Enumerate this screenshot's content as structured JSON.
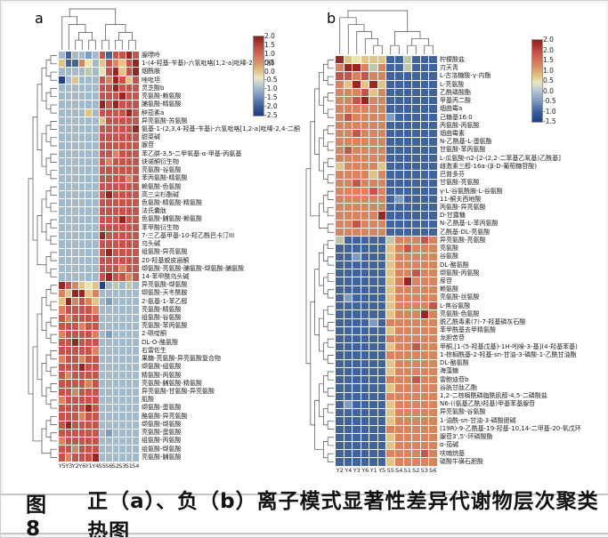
{
  "figure": {
    "caption_prefix": "图 8",
    "caption": "正（a）、负（b）离子模式显著性差异代谢物层次聚类热图"
  },
  "palette": {
    "R": "#992620",
    "r": "#c5544a",
    "o": "#d8845f",
    "t": "#e2c386",
    "y": "#e9e2b1",
    "g": "#bec7a8",
    "b": "#a2b8cb",
    "m": "#7e9cc2",
    "B": "#41639e",
    "D": "#24418e"
  },
  "chart_data": {
    "type": "heatmap",
    "title": "正（a）、负（b）离子模式显著性差异代谢物层次聚类热图",
    "legend_position": "right",
    "panels": [
      {
        "label": "a",
        "col_labels": [
          "Y5",
          "Y3",
          "Y2",
          "Y6",
          "Y1",
          "Y4",
          "S5",
          "S6",
          "S2",
          "S3",
          "S1",
          "S4"
        ],
        "colorbar_ticks": [
          "2.0",
          "1.5",
          "1.0",
          "0.5",
          "0.0",
          "-0.5",
          "-1.0",
          "-1.5",
          "-2.0",
          "-2.5"
        ],
        "colorbar_range": [
          2.0,
          -2.5
        ],
        "row_split": 28,
        "col_tree": [
          [
            0,
            [
              1,
              [
                [
                  2,
                  3
                ],
                [
                  4,
                  5
                ]
              ]
            ]
          ],
          [
            [
              6,
              7
            ],
            [
              [
                8,
                9
              ],
              [
                10,
                11
              ]
            ]
          ]
        ],
        "row_labels": [
          "腺嘌呤",
          "1-(4-羟基-苄基)-六氢吡咯[1,2-a]吡嗪-2,4-二酮",
          "烟酰胺",
          "唑吡坦",
          "灵芝酸b",
          "亮氨酸-赖氨酸",
          "脯氨酸-精氨酸",
          "醉茄素a",
          "异亮氨酸-苏氨酸",
          "氨基-1-(2,3,4-羟基-苄基)-六氢吡咯[1,2-a]吡嗪-2,4-二酮",
          "甜菜碱",
          "脲苷",
          "苯乙肼-3,5-二甲氧基-α-甲基-丙氨基",
          "炔诺酮衍生物",
          "亮氨酸-谷氨酸",
          "苯丙氨酸-精氨酸",
          "赖氨酸-色氨酸",
          "高三尖杉酯碱",
          "色氨酸-精氨酸-精氨酸",
          "法氏囊肽",
          "色氨酸-脯氨酸-赖氨酸",
          "苯甲酸衍生物",
          "7-三乙基甲基-10-羟乙酰巴卡汀III",
          "乌头碱",
          "组氨酸-异亮氨酸",
          "20-羟基蜕皮甾酮",
          "缬氨酸-亮氨酸-脯氨酸-缬氨酸-脯氨酸",
          "14-苯甲酰乌头碱",
          "异亮氨酸-缬氨酸",
          "缬氨酸-天冬酰胺",
          "2-氨基-1-苯乙醇",
          "亮氨酸-精氨酸",
          "组氨酸-谷氨酸",
          "亮氨酸-苯丙氨酸",
          "2-哌啶酮",
          "DL-O-酪氨酸",
          "右雷佐生",
          "果糖-亮氨酸-异亮氨酸复合物",
          "缬氨酸-组氨酸",
          "精氨酸-丙氨酸",
          "亮氨酸-脯氨酸-精氨酸",
          "异亮氨酸-甘氨酸-异亮氨酸",
          "肌酸",
          "缬氨酸-蛋氨酸",
          "酪氨酸-异亮氨酸",
          "缬氨酸-缬氨酸",
          "亮氨酸-蛋氨酸",
          "组氨酸-丙氨酸",
          "组氨酸-缬氨酸",
          "亮氨酸-脯氨酸"
        ],
        "rows": [
          "bBbbmbrBrrRr",
          "tBBoybtrotrR",
          "bbbbgbyrRtrR",
          "DbtbbbroRrtr",
          "bbbbbbrrRrrr",
          "bbbbbbrrrRrr",
          "bbbbbbRrRrrr",
          "bbbbtbrrrrRr",
          "bbbbbbtrrrrr",
          "bbbbbbrrrrrR",
          "bbbbbbrrrrrr",
          "bbbbbbrrrrrr",
          "bbbbbbrrorrr",
          "bbbbbbrorrrr",
          "bbbbbbrrrrrr",
          "bbbbbbrrrror",
          "bbbbbbrrrrrr",
          "bbbbbbrRrrrr",
          "bbbbbbrrrrrr",
          "bbbbbbrrrrrr",
          "bbbbbbrrrRrr",
          "bbbbbbrrrrrr",
          "bbbbbbRrrrrr",
          "bbbbbbrrrrrr",
          "bbbbbbrRrrrr",
          "bbbbbbrrrrrr",
          "bbbbbbrrrorr",
          "bbbbbbrRrror",
          "RrotytDbgbgb",
          "otRRtobbbbbb",
          "tRorotbmbbbb",
          "orrrrobbbbbb",
          "rorrrrbbbbbb",
          "rrrorrbbbbbb",
          "orrrrobmbbbb",
          "rrRrrrbbbbbb",
          "rrrrrobbbbbb",
          "orrorrbbbbbb",
          "rrrRrrbbbbbb",
          "rorrrrbbbbbb",
          "rrrrorbbbbbb",
          "rrorrrbbbbbb",
          "orrrrrbbbbbb",
          "rrrrRrbbbbbb",
          "rrrorrbbbbbb",
          "rRrrrrbbbbbb",
          "rrrrrrbmbbbb",
          "orrrrrbbbbbb",
          "rrorrrbbbbbb",
          "rorrrRbbbbbb"
        ]
      },
      {
        "label": "b",
        "col_labels": [
          "Y2",
          "Y4",
          "Y3",
          "Y6",
          "Y1",
          "Y5",
          "S5",
          "S4",
          "S1",
          "S2",
          "S3",
          "S6"
        ],
        "colorbar_ticks": [
          "2.0",
          "2.0",
          "1.5",
          "1.0",
          "0.5",
          "0.0",
          "-0.5",
          "-1.0",
          "-1.5"
        ],
        "colorbar_range": [
          2.0,
          -1.5
        ],
        "row_split": 22,
        "col_tree": [
          [
            0,
            [
              1,
              [
                2,
                [
                  3,
                  [
                    4,
                    5
                  ]
                ]
              ]
            ]
          ],
          [
            [
              6,
              7
            ],
            [
              [
                8,
                9
              ],
              [
                10,
                11
              ]
            ]
          ]
        ],
        "row_labels": [
          "柠檬酸盐",
          "刃天青",
          "L-古洛糖酸-γ-内酯",
          "L-亮氨酸",
          "乙酰磷酸酯",
          "甲基丙二酸",
          "烟曲霉a",
          "己糖基16:0",
          "丙氨酸-丙氨酸",
          "烟曲霉素",
          "N-乙酰基-L-蛋氨酯",
          "甘氨酸-苯丙氨酸",
          "L-瓜氨酸-n2-[2-(2,2-二苯基乙氧基)乙酰基]",
          "雌激素三醇-16α-(β-D-葡萄糖苷酸)",
          "巴普多芬",
          "甘氨酸-亮氨酸",
          "γ-L-谷氨酰胺-L-谷氨酸",
          "11-酮夫西地酸",
          "丙氨酸-异亮氨酸",
          "D-甘露糖",
          "N-乙酰基-L-苯丙氨酸",
          "乙酰基-DL-亮氨酸",
          "异亮氨酸-亮氨酸",
          "亮氨酸",
          "谷氨酸",
          "DL-酪氨酸",
          "缬氨酸-丙氨酸",
          "尿苷",
          "赖氨酸",
          "亮氨酸-丝氨酸",
          "L-焦谷氨酸",
          "亮氨酸-色氨酸",
          "脱乙酰毒素(7)-7-羟基磷灰石酸",
          "苯甲酰基去甲精氨酸",
          "龙胆苦苷",
          "甲酮,[1-(5-羟基戊基)-1H-吲哚-3-基](4-羟基苯基)",
          "1-棕榈酰基-2-羟基-sn-甘油-3-磷酸-1-乙酰甘油酯",
          "DL-酪氨酸",
          "海藻糖",
          "雷鲍迪苷b",
          "谷胱甘肽乙酯",
          "1,2-二棕榈酰磷脂酰肌醇-4,5-二磷酸盐",
          "N6-((氨基乙酰)羟基)甲基苯基腺苷",
          "异亮氨酸-谷氨酸",
          "1-油酰-sn-甘油-3-磷酸胆碱",
          "(19R)-9-乙酰基-19-羟基-10,14-二甲基-20-氧戊环",
          "腺苷3',5'-环磷酸酯",
          "α-茄碱",
          "呋喃烷基",
          "硫酸牛磺石胆酸"
        ],
        "rows": [
          "RtytttBBgBBB",
          "oRRogoBBgBBB",
          "rrorooBBBBBB",
          "otRtRtBBBBBB",
          "ooortoBBBBBB",
          "oorRooBBBBBB",
          "ooooooBBBBBB",
          "oroooomBBBBB",
          "ooooooBBBBBB",
          "ooroooBBBBBB",
          "ooooooBBBBBB",
          "orooooBBBBBB",
          "ooooooBBBBBB",
          "tooootBBBBBB",
          "ooootoBBBBBB",
          "ooroooBBBBBB",
          "ooooroBBBBBB",
          "ooooooBmBBBB",
          "ooooooBBBBBB",
          "oooooRBBBBBB",
          "ooroooBBBBBB",
          "ooooooBBBBBB",
          "gBBBBBgoooro",
          "BBBBBBtorooo",
          "BBmBBBtooooo",
          "BBBBBBtooooo",
          "BBBBBBtooroo",
          "BBBBBBtoRooo",
          "BBBBBBtooooo",
          "BmBBBBtooooo",
          "BBBBBBtoooor",
          "BBBBBBtoooRo",
          "BBBBmBoooooo",
          "BBBBBBtooooo",
          "BBBBBBoooooo",
          "BBBBBBtooroo",
          "BBBBBBoooooo",
          "BBBBBBtooooo",
          "BBBBBBtooooo",
          "BBBBBBoooroo",
          "BBBBBBtooooo",
          "BBBBBBoooooo",
          "BmBBBBtooooo",
          "BBBBBBtooooo",
          "BBBBBBtooooo",
          "BBBBBBoooooo",
          "BBBBBBtooooo",
          "BBBBBBtooooo",
          "BBBBBBooooro",
          "BBBBBBtooooo"
        ]
      }
    ]
  }
}
